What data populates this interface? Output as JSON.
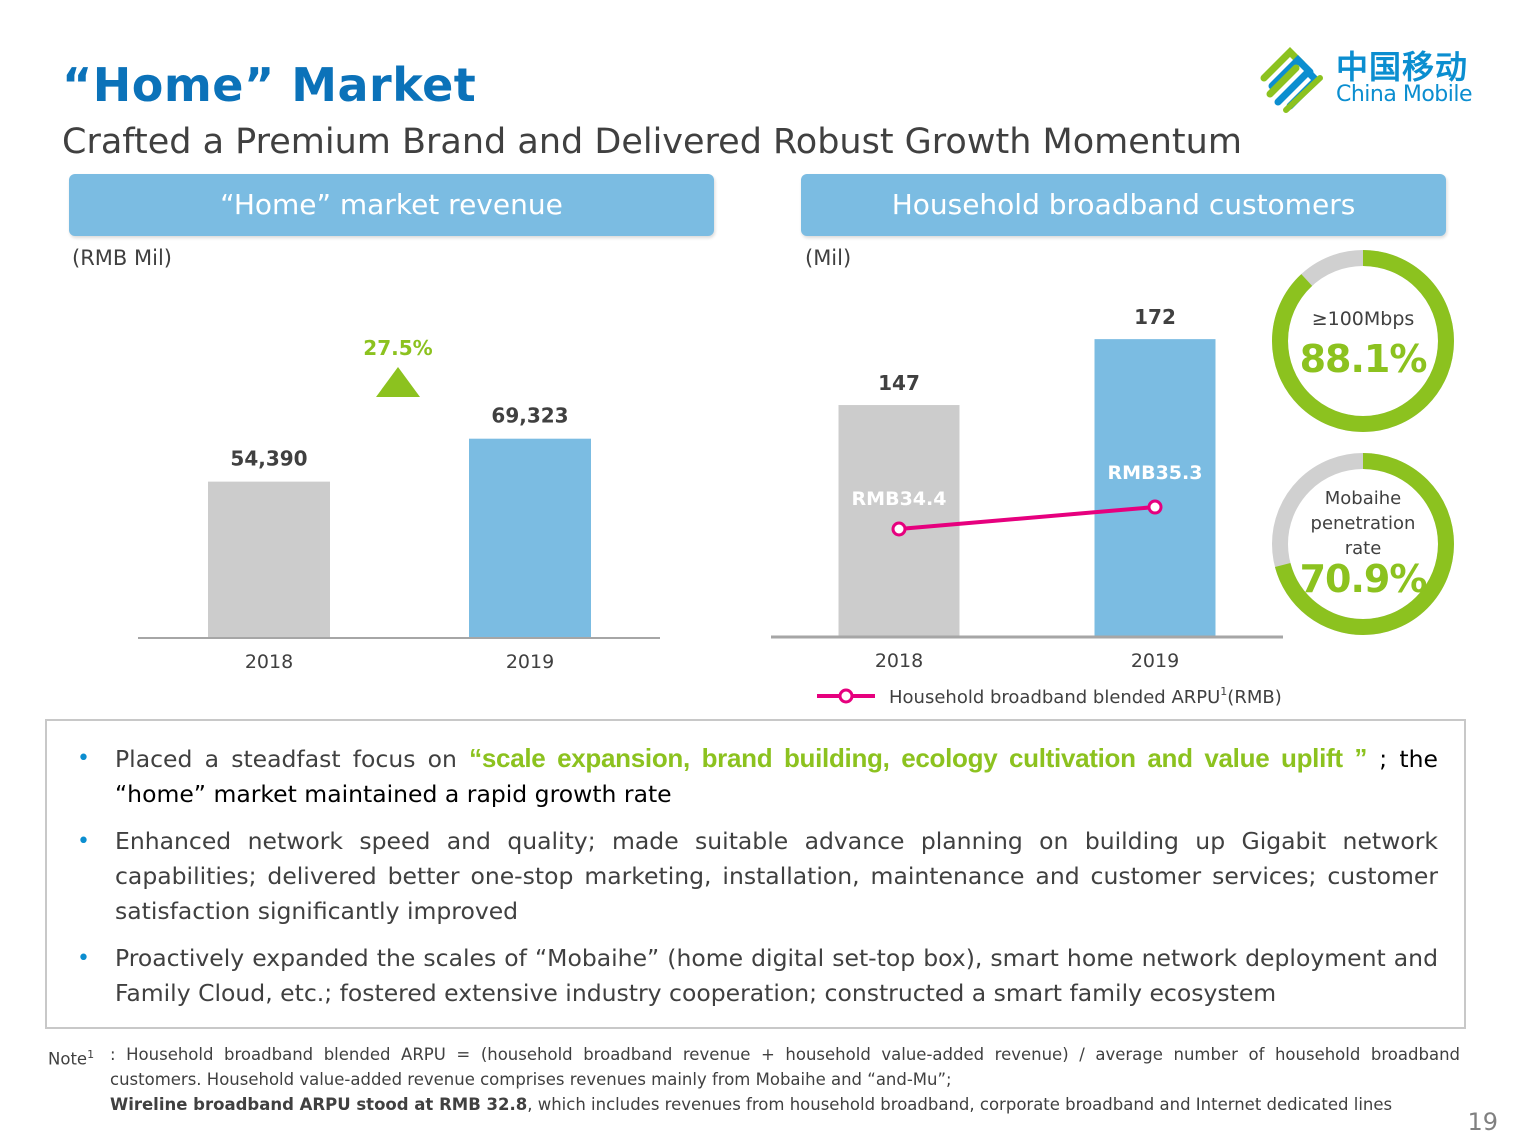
{
  "slide": {
    "title": "“Home” Market",
    "subtitle": "Crafted a Premium Brand and Delivered Robust Growth Momentum",
    "page_number": "19"
  },
  "logo": {
    "chinese": "中国移动",
    "english": "China Mobile"
  },
  "colors": {
    "accent_blue": "#7bbce2",
    "gray_bar": "#cccccc",
    "green": "#8cc21f",
    "magenta": "#e6007e",
    "title_blue": "#0b72b9"
  },
  "chart_data": [
    {
      "type": "bar",
      "title": "“Home” market revenue",
      "unit": "(RMB Mil)",
      "categories": [
        "2018",
        "2019"
      ],
      "values": [
        54390,
        69323
      ],
      "value_labels": [
        "54,390",
        "69,323"
      ],
      "bar_colors": [
        "#cccccc",
        "#7bbce2"
      ],
      "annotation": {
        "text": "27.5%",
        "icon": "up-triangle-icon"
      },
      "ylim": [
        0,
        80000
      ]
    },
    {
      "type": "bar",
      "title": "Household broadband customers",
      "unit": "(Mil)",
      "categories": [
        "2018",
        "2019"
      ],
      "values": [
        147,
        172
      ],
      "value_labels": [
        "147",
        "172"
      ],
      "bar_colors": [
        "#cccccc",
        "#7bbce2"
      ],
      "ylim": [
        0,
        200
      ],
      "line_series": {
        "name": "Household broadband blended ARPU",
        "superscript": "1",
        "suffix": "(RMB)",
        "values": [
          34.4,
          35.3
        ],
        "labels": [
          "RMB34.4",
          "RMB35.3"
        ]
      }
    },
    {
      "type": "pie",
      "label": "≥100Mbps",
      "value_text": "88.1%",
      "value": 88.1
    },
    {
      "type": "pie",
      "label_lines": [
        "Mobaihe",
        "penetration",
        "rate"
      ],
      "value_text": "70.9%",
      "value": 70.9
    }
  ],
  "bullets": [
    {
      "before": "Placed a steadfast focus on ",
      "highlight": "“scale expansion, brand building, ecology cultivation and value uplift ”",
      "after": " ; the “home” market maintained a rapid growth rate"
    },
    {
      "text": "Enhanced network speed and quality; made suitable advance planning on building up Gigabit network capabilities; delivered better one-stop marketing, installation, maintenance and customer services; customer satisfaction significantly improved"
    },
    {
      "text": "Proactively expanded the scales of “Mobaihe” (home digital set-top box), smart home network deployment and Family Cloud, etc.; fostered extensive industry cooperation; constructed a smart family ecosystem"
    }
  ],
  "note": {
    "label": "Note",
    "superscript": "1",
    "line1": ": Household broadband blended ARPU = (household broadband revenue + household value-added revenue)  / average number of household broadband customers. Household value-added  revenue comprises revenues mainly from Mobaihe and “and-Mu”;",
    "bold_part": "Wireline broadband ARPU stood at RMB 32.8",
    "line2_rest": ", which includes revenues from household broadband, corporate broadband and Internet dedicated lines"
  }
}
